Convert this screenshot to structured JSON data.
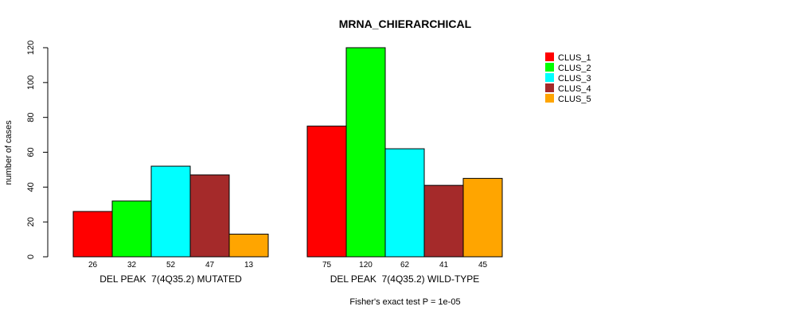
{
  "chart_data": {
    "type": "bar",
    "title": "MRNA_CHIERARCHICAL",
    "ylabel": "number of cases",
    "ylim": [
      0,
      120
    ],
    "yticks": [
      0,
      20,
      40,
      60,
      80,
      100,
      120
    ],
    "groups": [
      {
        "label": "DEL PEAK  7(4Q35.2) MUTATED",
        "values": [
          26,
          32,
          52,
          47,
          13
        ]
      },
      {
        "label": "DEL PEAK  7(4Q35.2) WILD-TYPE",
        "values": [
          75,
          120,
          62,
          41,
          45
        ]
      }
    ],
    "series": [
      {
        "name": "CLUS_1",
        "color": "#ff0000"
      },
      {
        "name": "CLUS_2",
        "color": "#00ff00"
      },
      {
        "name": "CLUS_3",
        "color": "#00ffff"
      },
      {
        "name": "CLUS_4",
        "color": "#a52a2a"
      },
      {
        "name": "CLUS_5",
        "color": "#ffa500"
      }
    ],
    "legend_position": "top-right",
    "footnote": "Fisher's exact test P = 1e-05"
  }
}
